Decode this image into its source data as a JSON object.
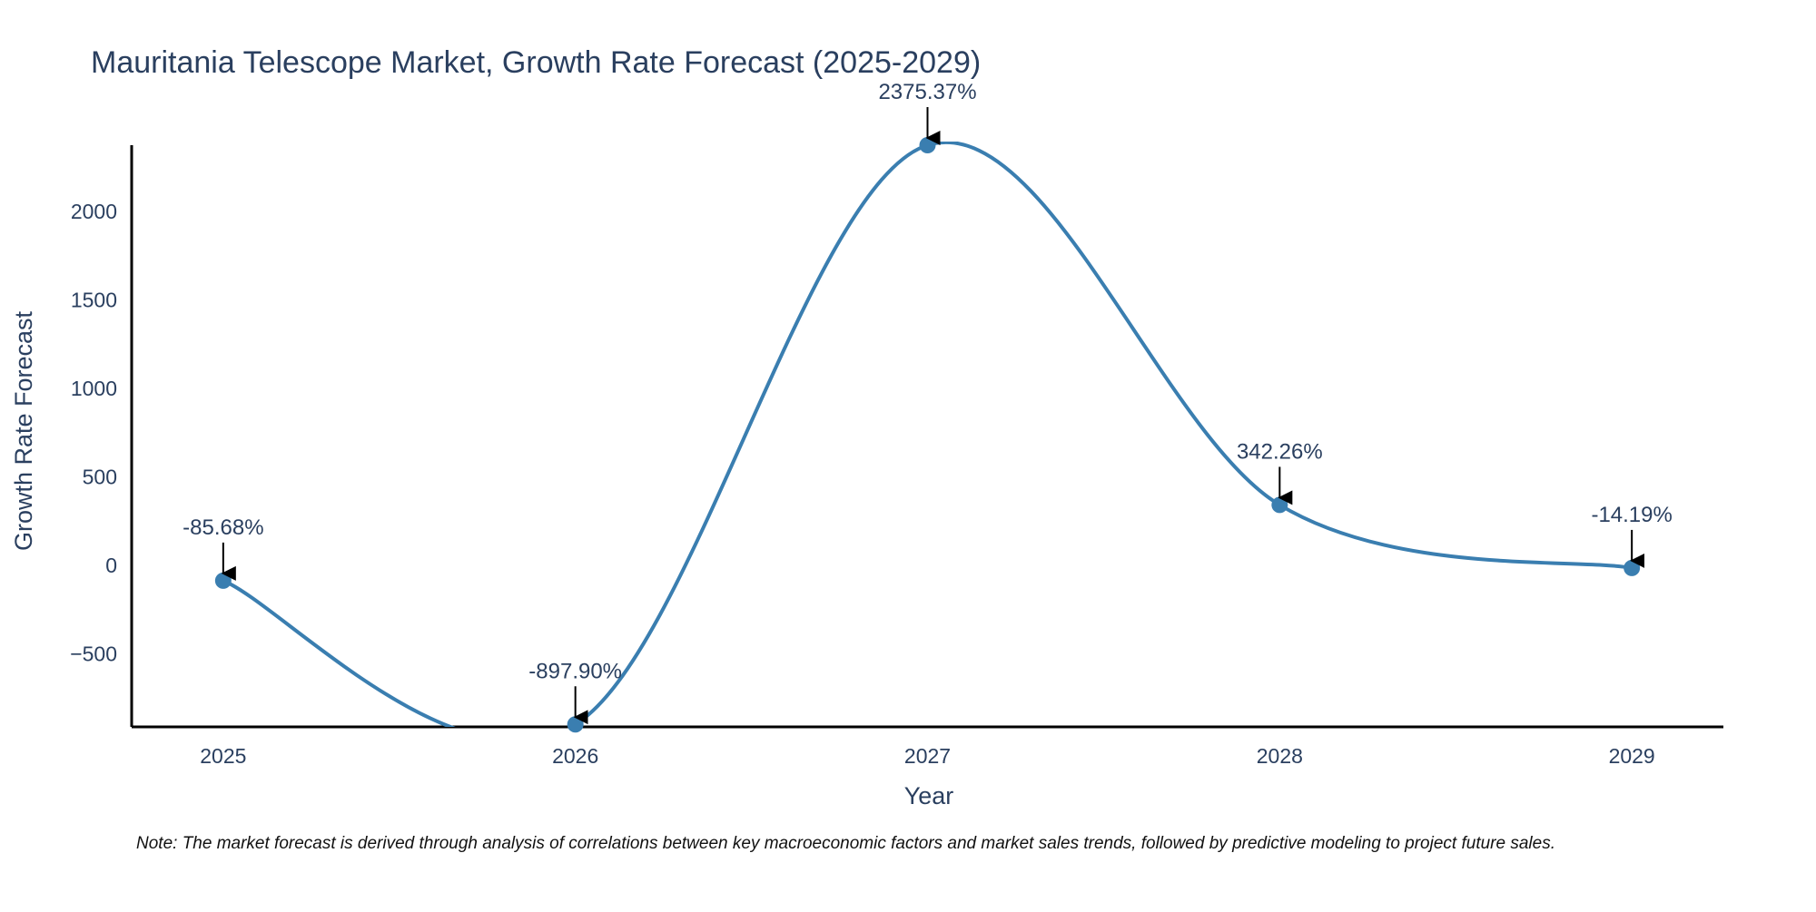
{
  "chart_data": {
    "type": "line",
    "title": "Mauritania Telescope Market, Growth Rate Forecast (2025-2029)",
    "xlabel": "Year",
    "ylabel": "Growth Rate Forecast",
    "categories": [
      "2025",
      "2026",
      "2027",
      "2028",
      "2029"
    ],
    "x": [
      2025,
      2026,
      2027,
      2028,
      2029
    ],
    "series": [
      {
        "name": "Growth Rate Forecast",
        "values": [
          -85.68,
          -897.9,
          2375.37,
          342.26,
          -14.19
        ],
        "labels": [
          "-85.68%",
          "-897.90%",
          "2375.37%",
          "342.26%",
          "-14.19%"
        ],
        "color": "#3a7eb0"
      }
    ],
    "yticks": [
      -500,
      0,
      500,
      1000,
      1500,
      2000
    ],
    "ytick_labels": [
      "−500",
      "0",
      "500",
      "1000",
      "1500",
      "2000"
    ],
    "xlim": [
      2024.74,
      2029.26
    ],
    "ylim": [
      -912,
      2375.37
    ],
    "grid": false,
    "legend": "none",
    "axis_color": "#000000",
    "note": "Note: The market forecast is derived through analysis of correlations between key macroeconomic factors and market sales trends, followed by predictive modeling to project future sales."
  }
}
